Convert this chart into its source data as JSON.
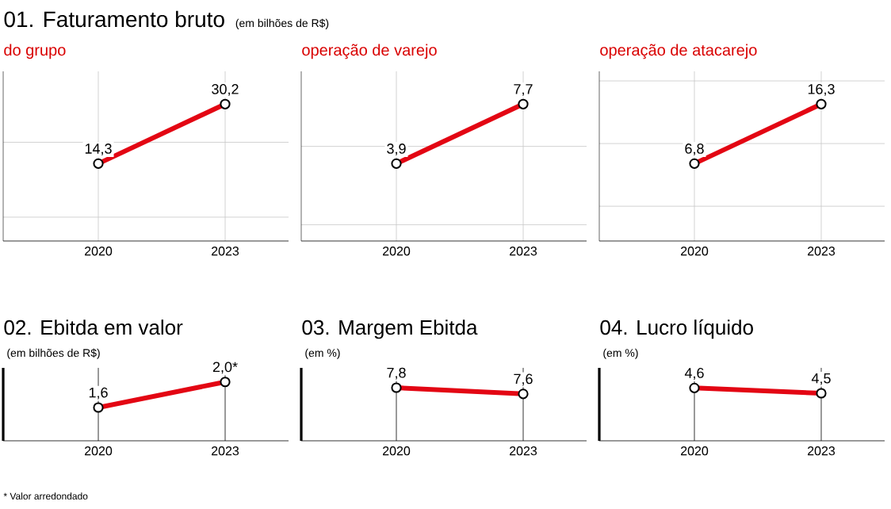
{
  "chart_data": [
    {
      "type": "other",
      "title": "01. Faturamento bruto",
      "subtitle": "(em bilhões de R$)"
    },
    {
      "type": "line",
      "title": "do grupo",
      "categories": [
        "2020",
        "2023"
      ],
      "values": [
        14.3,
        30.2
      ],
      "value_labels": [
        "14,3",
        "30,2"
      ],
      "color": "#e30613",
      "marker": "circle",
      "grid": true,
      "tick_labels": "x"
    },
    {
      "type": "line",
      "title": "operação de varejo",
      "categories": [
        "2020",
        "2023"
      ],
      "values": [
        3.9,
        7.7
      ],
      "value_labels": [
        "3,9",
        "7,7"
      ],
      "color": "#e30613",
      "marker": "circle",
      "grid": true,
      "tick_labels": "x"
    },
    {
      "type": "line",
      "title": "operação de atacarejo",
      "categories": [
        "2020",
        "2023"
      ],
      "values": [
        6.8,
        16.3
      ],
      "value_labels": [
        "6,8",
        "16,3"
      ],
      "color": "#e30613",
      "marker": "circle",
      "grid": true,
      "tick_labels": "x"
    },
    {
      "type": "line",
      "title": "02. Ebitda em valor",
      "subtitle": "(em bilhões de R$)",
      "categories": [
        "2020",
        "2023"
      ],
      "values": [
        1.6,
        2.0
      ],
      "value_labels": [
        "1,6",
        "2,0*"
      ],
      "color": "#e30613",
      "marker": "circle",
      "grid": "x",
      "tick_labels": "x",
      "annotations": [
        "* Valor arredondado"
      ]
    },
    {
      "type": "line",
      "title": "03. Margem Ebitda",
      "subtitle": "(em %)",
      "categories": [
        "2020",
        "2023"
      ],
      "values": [
        7.8,
        7.6
      ],
      "value_labels": [
        "7,8",
        "7,6"
      ],
      "color": "#e30613",
      "marker": "circle",
      "grid": "x",
      "tick_labels": "x"
    },
    {
      "type": "line",
      "title": "04. Lucro líquido",
      "subtitle": "(em %)",
      "categories": [
        "2020",
        "2023"
      ],
      "values": [
        4.6,
        4.5
      ],
      "value_labels": [
        "4,6",
        "4,5"
      ],
      "color": "#e30613",
      "marker": "circle",
      "grid": "x",
      "tick_labels": "x"
    }
  ]
}
